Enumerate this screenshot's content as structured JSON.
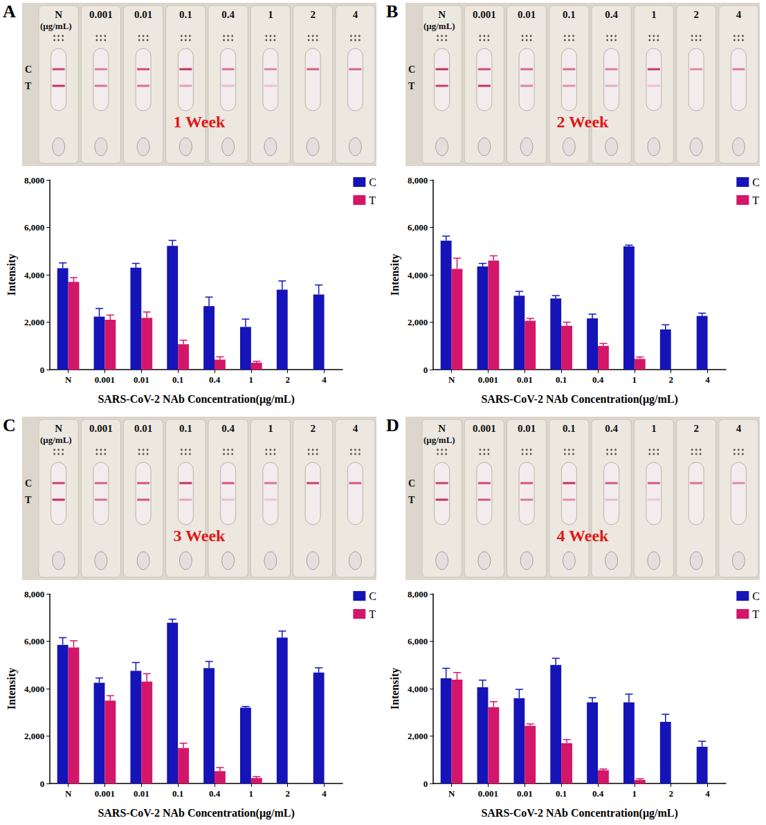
{
  "chart_data": [
    {
      "type": "bar",
      "panel_label": "A",
      "photo_title": "1 Week",
      "photo_unit": "(μg/mL)",
      "categories": [
        "N",
        "0.001",
        "0.01",
        "0.1",
        "0.4",
        "1",
        "2",
        "4"
      ],
      "series": [
        {
          "name": "C",
          "color": "#1414b8",
          "values": [
            4280,
            2230,
            4300,
            5220,
            2680,
            1800,
            3370,
            3170
          ],
          "errors": [
            220,
            350,
            180,
            230,
            380,
            330,
            370,
            400
          ]
        },
        {
          "name": "T",
          "color": "#d4166a",
          "values": [
            3700,
            2100,
            2180,
            1070,
            420,
            290,
            0,
            0
          ],
          "errors": [
            180,
            200,
            250,
            170,
            120,
            60,
            0,
            0
          ]
        }
      ],
      "x_label": "SARS-CoV-2 NAb Concentration(μg/mL)",
      "y_label": "Intensity",
      "ylim": [
        0,
        8000
      ],
      "yticks": [
        0,
        2000,
        4000,
        6000,
        8000
      ],
      "legend": "upper right",
      "grid": false
    },
    {
      "type": "bar",
      "panel_label": "B",
      "photo_title": "2 Week",
      "photo_unit": "(μg/mL)",
      "categories": [
        "N",
        "0.001",
        "0.01",
        "0.1",
        "0.4",
        "1",
        "2",
        "4"
      ],
      "series": [
        {
          "name": "C",
          "color": "#1414b8",
          "values": [
            5440,
            4350,
            3120,
            3000,
            2160,
            5200,
            1690,
            2260
          ],
          "errors": [
            190,
            130,
            180,
            120,
            180,
            50,
            200,
            120
          ]
        },
        {
          "name": "T",
          "color": "#d4166a",
          "values": [
            4250,
            4600,
            2060,
            1850,
            1000,
            450,
            0,
            0
          ],
          "errors": [
            450,
            200,
            100,
            150,
            100,
            80,
            0,
            0
          ]
        }
      ],
      "x_label": "SARS-CoV-2 NAb Concentration(μg/mL)",
      "y_label": "Intensity",
      "ylim": [
        0,
        8000
      ],
      "yticks": [
        0,
        2000,
        4000,
        6000,
        8000
      ],
      "legend": "upper right",
      "grid": false
    },
    {
      "type": "bar",
      "panel_label": "C",
      "photo_title": "3 Week",
      "photo_unit": "(μg/mL)",
      "categories": [
        "N",
        "0.001",
        "0.01",
        "0.1",
        "0.4",
        "1",
        "2",
        "4"
      ],
      "series": [
        {
          "name": "C",
          "color": "#1414b8",
          "values": [
            5850,
            4250,
            4750,
            6780,
            4870,
            3200,
            6150,
            4680
          ],
          "errors": [
            300,
            200,
            350,
            150,
            280,
            50,
            280,
            200
          ]
        },
        {
          "name": "T",
          "color": "#d4166a",
          "values": [
            5740,
            3500,
            4300,
            1500,
            520,
            230,
            0,
            0
          ],
          "errors": [
            280,
            200,
            330,
            200,
            150,
            60,
            0,
            0
          ]
        }
      ],
      "x_label": "SARS-CoV-2 NAb Concentration(μg/mL)",
      "y_label": "Intensity",
      "ylim": [
        0,
        8000
      ],
      "yticks": [
        0,
        2000,
        4000,
        6000,
        8000
      ],
      "legend": "upper right",
      "grid": false
    },
    {
      "type": "bar",
      "panel_label": "D",
      "photo_title": "4 Week",
      "photo_unit": "(μg/mL)",
      "categories": [
        "N",
        "0.001",
        "0.01",
        "0.1",
        "0.4",
        "1",
        "2",
        "4"
      ],
      "series": [
        {
          "name": "C",
          "color": "#1414b8",
          "values": [
            4440,
            4060,
            3600,
            5000,
            3420,
            3420,
            2600,
            1550
          ],
          "errors": [
            420,
            300,
            370,
            280,
            200,
            350,
            320,
            230
          ]
        },
        {
          "name": "T",
          "color": "#d4166a",
          "values": [
            4380,
            3220,
            2430,
            1700,
            560,
            150,
            0,
            0
          ],
          "errors": [
            300,
            230,
            80,
            150,
            50,
            50,
            0,
            0
          ]
        }
      ],
      "x_label": "SARS-CoV-2 NAb Concentration(μg/mL)",
      "y_label": "Intensity",
      "ylim": [
        0,
        8000
      ],
      "yticks": [
        0,
        2000,
        4000,
        6000,
        8000
      ],
      "legend": "upper right",
      "grid": false
    }
  ]
}
